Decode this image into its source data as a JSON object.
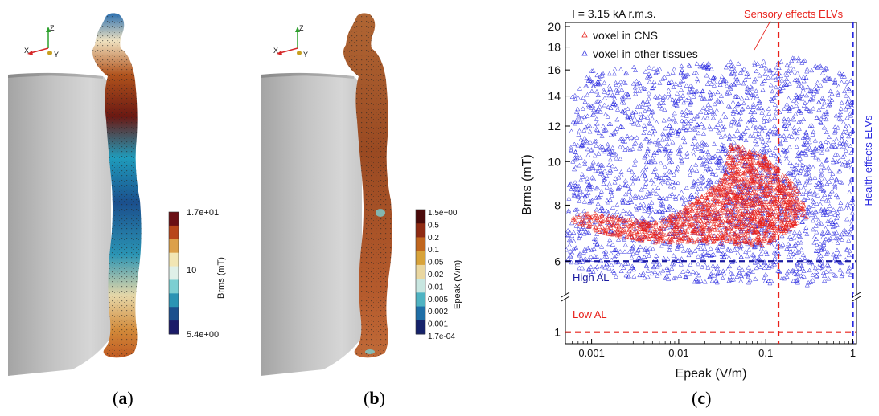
{
  "panels": {
    "a": {
      "label_open": "(",
      "label_letter": "a",
      "label_close": ")",
      "axes": {
        "x": "X",
        "y": "Y",
        "z": "Z"
      },
      "colorbar": {
        "title": "Brms (mT)",
        "ticks": [
          "1.7e+01",
          "10",
          "5.4e+00"
        ],
        "colors": [
          "#6b0f14",
          "#b8461a",
          "#dca04a",
          "#f2e6b4",
          "#dff0e8",
          "#7ccfd2",
          "#2a94b4",
          "#1b4f8d",
          "#1b1b68"
        ]
      }
    },
    "b": {
      "label_open": "(",
      "label_letter": "b",
      "label_close": ")",
      "axes": {
        "x": "X",
        "y": "Y",
        "z": "Z"
      },
      "colorbar": {
        "title": "Epeak (V/m)",
        "ticks": [
          "1.5e+00",
          "0.5",
          "0.2",
          "0.1",
          "0.05",
          "0.02",
          "0.01",
          "0.005",
          "0.002",
          "0.001",
          "1.7e-04"
        ],
        "colors": [
          "#4a0a0a",
          "#8e2a12",
          "#c0661e",
          "#d8a33a",
          "#ead7a0",
          "#c8e6e0",
          "#4fb3c2",
          "#1f6ea6",
          "#15226a"
        ]
      }
    },
    "c": {
      "label_open": "(",
      "label_letter": "c",
      "label_close": ")"
    }
  },
  "chart_data": {
    "type": "scatter",
    "title": "I = 3.15 kA r.m.s.",
    "xlabel": "Epeak (V/m)",
    "ylabel": "Brms (mT)",
    "x_scale": "log",
    "y_scale": "log (broken axis)",
    "xlim": [
      0.0005,
      1.1
    ],
    "ylim": [
      0.9,
      20
    ],
    "x_ticks": [
      "0.001",
      "0.01",
      "0.1",
      "1"
    ],
    "y_ticks": [
      "1",
      "6",
      "8",
      "10",
      "12",
      "14",
      "16",
      "18",
      "20"
    ],
    "series": [
      {
        "name": "voxel in CNS",
        "marker": "triangle",
        "color": "#e8201a",
        "region_description_points": [
          [
            0.0005,
            7.5
          ],
          [
            0.001,
            7.7
          ],
          [
            0.005,
            7.3
          ],
          [
            0.01,
            7.8
          ],
          [
            0.03,
            9.0
          ],
          [
            0.04,
            11.0
          ],
          [
            0.1,
            10.3
          ],
          [
            0.25,
            8.6
          ],
          [
            0.3,
            7.5
          ],
          [
            0.1,
            6.5
          ],
          [
            0.02,
            6.6
          ],
          [
            0.005,
            6.6
          ],
          [
            0.001,
            7.0
          ]
        ]
      },
      {
        "name": "voxel in other tissues",
        "marker": "triangle",
        "color": "#2a2ae0",
        "region_description_points": [
          [
            0.0006,
            14.0
          ],
          [
            0.001,
            16.0
          ],
          [
            0.01,
            16.5
          ],
          [
            0.1,
            16.8
          ],
          [
            0.2,
            17.2
          ],
          [
            0.5,
            16.2
          ],
          [
            1.0,
            15.5
          ],
          [
            1.0,
            5.6
          ],
          [
            0.3,
            5.3
          ],
          [
            0.01,
            5.4
          ],
          [
            0.001,
            5.6
          ],
          [
            0.0005,
            6.0
          ]
        ]
      }
    ],
    "reference_lines": [
      {
        "label": "Sensory effects ELVs",
        "orientation": "vertical",
        "x": 0.14,
        "color": "#e8201a",
        "style": "dashed"
      },
      {
        "label": "Health effects ELVs",
        "orientation": "vertical",
        "x": 1.0,
        "color": "#2a2ae0",
        "style": "dashed"
      },
      {
        "label": "High AL",
        "orientation": "horizontal",
        "y": 6,
        "color": "#1a1aa0",
        "style": "dashed"
      },
      {
        "label": "Low AL",
        "orientation": "horizontal",
        "y": 1,
        "color": "#e8201a",
        "style": "dashed"
      }
    ],
    "legend_position": "top-left"
  }
}
